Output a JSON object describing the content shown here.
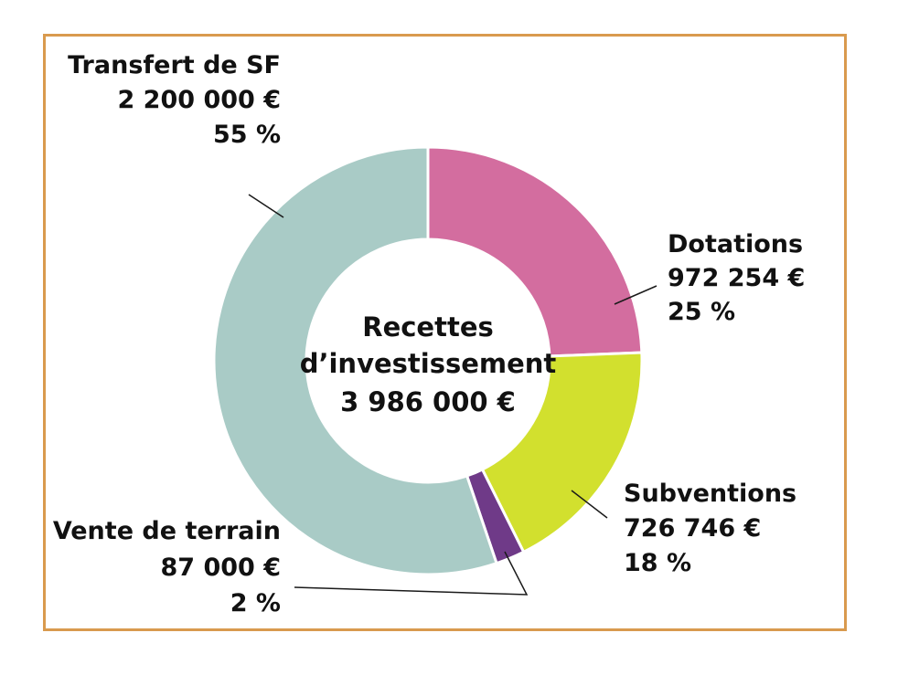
{
  "chart_data": {
    "type": "pie",
    "variant": "donut",
    "center_label": [
      "Recettes",
      "d’investissement",
      "3 986 000 €"
    ],
    "series": [
      {
        "name": "Recettes d’investissement",
        "slices": [
          {
            "label": "Dotations",
            "value": 972254,
            "value_text": "972 254 €",
            "percent_text": "25 %",
            "color": "#d36d9f"
          },
          {
            "label": "Subventions",
            "value": 726746,
            "value_text": "726 746 €",
            "percent_text": "18 %",
            "color": "#d2e02e"
          },
          {
            "label": "Vente de terrain",
            "value": 87000,
            "value_text": "87 000 €",
            "percent_text": "2 %",
            "color": "#6f3a88"
          },
          {
            "label": "Transfert de SF",
            "value": 2200000,
            "value_text": "2 200 000 €",
            "percent_text": "55 %",
            "color": "#a9cbc6"
          }
        ]
      }
    ]
  },
  "colors": {
    "frame": "#d99a4e",
    "leader": "#1a1a1a",
    "text": "#111111"
  }
}
